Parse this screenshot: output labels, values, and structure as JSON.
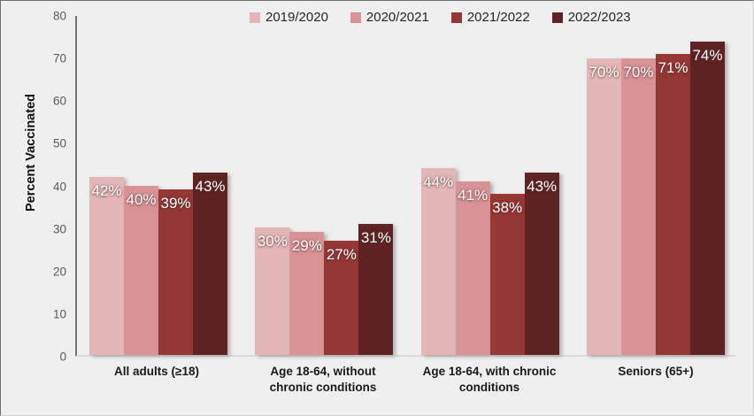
{
  "chart_data": {
    "type": "bar",
    "title": "",
    "ylabel": "Percent Vaccinated",
    "xlabel": "",
    "ylim": [
      0,
      80
    ],
    "yticks": [
      0,
      10,
      20,
      30,
      40,
      50,
      60,
      70,
      80
    ],
    "grid": false,
    "legend_position": "top",
    "value_suffix": "%",
    "background_color": "#efefef",
    "categories": [
      "All adults (≥18)",
      "Age 18-64, without chronic conditions",
      "Age 18-64, with chronic conditions",
      "Seniors (65+)"
    ],
    "series": [
      {
        "name": "2019/2020",
        "color": "#e3b7b8",
        "values": [
          42,
          30,
          44,
          70
        ]
      },
      {
        "name": "2020/2021",
        "color": "#d99295",
        "values": [
          40,
          29,
          41,
          70
        ]
      },
      {
        "name": "2021/2022",
        "color": "#953735",
        "values": [
          39,
          27,
          38,
          71
        ]
      },
      {
        "name": "2022/2023",
        "color": "#5f2323",
        "values": [
          43,
          31,
          43,
          74
        ]
      }
    ]
  }
}
